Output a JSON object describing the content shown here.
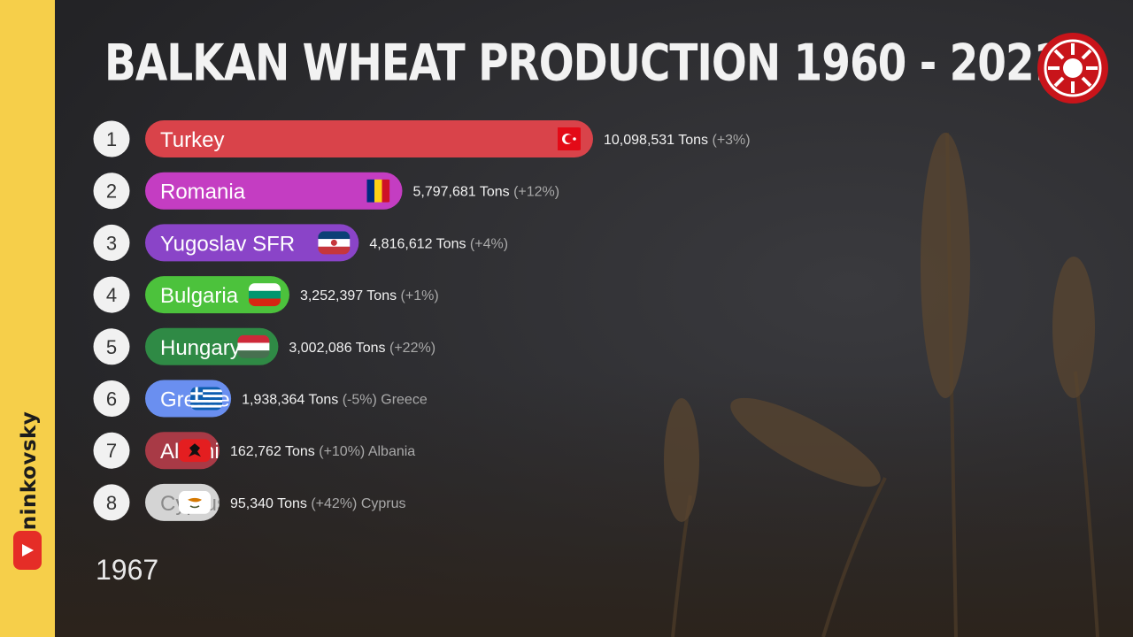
{
  "header": {
    "title": "BALKAN WHEAT PRODUCTION 1960 - 2021"
  },
  "sidebar": {
    "channel": "aninkovsky"
  },
  "timeline": {
    "year": "1967"
  },
  "colors": {
    "sidebar": "#f6cf4a",
    "background": "#2a2a2d",
    "logo": "#c8141a"
  },
  "icons": [
    "youtube-icon",
    "sun-logo-icon"
  ],
  "chart_data": {
    "type": "bar",
    "orientation": "horizontal",
    "title": "BALKAN WHEAT PRODUCTION 1960 - 2021",
    "unit": "Tons",
    "year": "1967",
    "max_value": 10098531,
    "categories": [
      "Turkey",
      "Romania",
      "Yugoslav SFR",
      "Bulgaria",
      "Hungary",
      "Greece",
      "Albania",
      "Cyprus"
    ],
    "bars": [
      {
        "rank": "1",
        "label": "Turkey",
        "value": 10098531,
        "value_text": "10,098,531 Tons",
        "change": "(+3%)",
        "outside_label": "",
        "color": "#d9434a",
        "flag": "turkey"
      },
      {
        "rank": "2",
        "label": "Romania",
        "value": 5797681,
        "value_text": "5,797,681 Tons",
        "change": "(+12%)",
        "outside_label": "",
        "color": "#c43dc2",
        "flag": "romania"
      },
      {
        "rank": "3",
        "label": "Yugoslav SFR",
        "value": 4816612,
        "value_text": "4,816,612 Tons",
        "change": "(+4%)",
        "outside_label": "",
        "color": "#8a44c8",
        "flag": "yugoslavia"
      },
      {
        "rank": "4",
        "label": "Bulgaria",
        "value": 3252397,
        "value_text": "3,252,397 Tons",
        "change": "(+1%)",
        "outside_label": "",
        "color": "#4cc23c",
        "flag": "bulgaria"
      },
      {
        "rank": "5",
        "label": "Hungary",
        "value": 3002086,
        "value_text": "3,002,086 Tons",
        "change": "(+22%)",
        "outside_label": "",
        "color": "#2f8a45",
        "flag": "hungary"
      },
      {
        "rank": "6",
        "label": "Greece",
        "value": 1938364,
        "value_text": "1,938,364 Tons",
        "change": "(-5%)",
        "outside_label": "Greece",
        "color": "#6a8ff0",
        "flag": "greece"
      },
      {
        "rank": "7",
        "label": "Albania",
        "value": 162762,
        "value_text": "162,762 Tons",
        "change": "(+10%)",
        "outside_label": "Albania",
        "color": "#a83a46",
        "flag": "albania"
      },
      {
        "rank": "8",
        "label": "Cyprus",
        "value": 95340,
        "value_text": "95,340 Tons",
        "change": "(+42%)",
        "outside_label": "Cyprus",
        "color": "#d4d4d4",
        "flag": "cyprus"
      }
    ]
  }
}
